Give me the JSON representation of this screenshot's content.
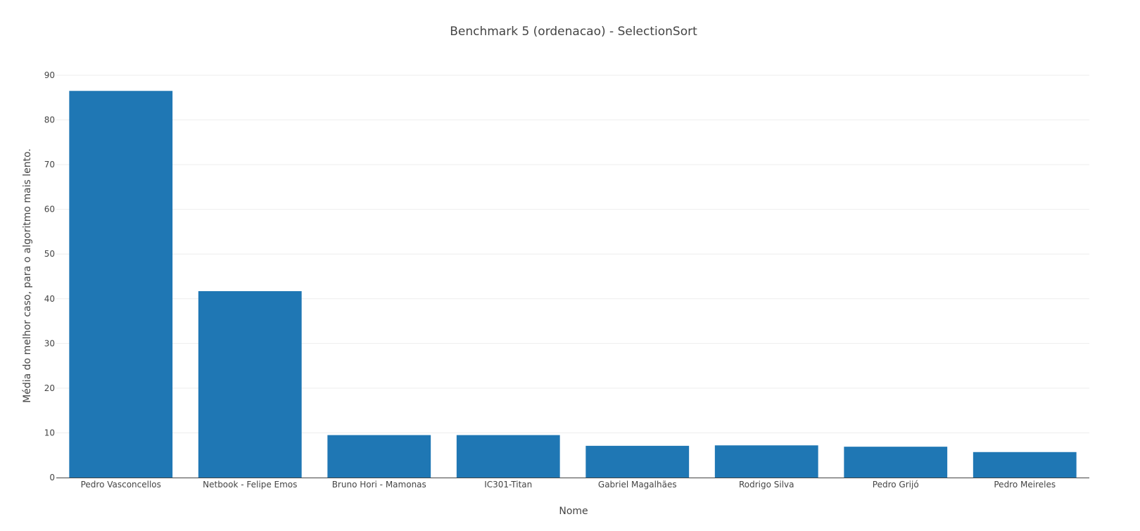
{
  "chart_data": {
    "type": "bar",
    "title": "Benchmark 5 (ordenacao) - SelectionSort",
    "xlabel": "Nome",
    "ylabel": "Média do melhor caso, para o algoritmo mais lento.",
    "categories": [
      "Pedro Vasconcellos",
      "Netbook - Felipe Emos",
      "Bruno Hori - Mamonas",
      "IC301-Titan",
      "Gabriel Magalhães",
      "Rodrigo Silva",
      "Pedro Grijó",
      "Pedro Meireles"
    ],
    "values": [
      86.5,
      41.7,
      9.5,
      9.5,
      7.1,
      7.2,
      6.9,
      5.7
    ],
    "ylim": [
      0,
      90
    ],
    "yticks": [
      0,
      10,
      20,
      30,
      40,
      50,
      60,
      70,
      80,
      90
    ],
    "bar_color": "#1f77b4",
    "grid": true,
    "legend": "none"
  }
}
